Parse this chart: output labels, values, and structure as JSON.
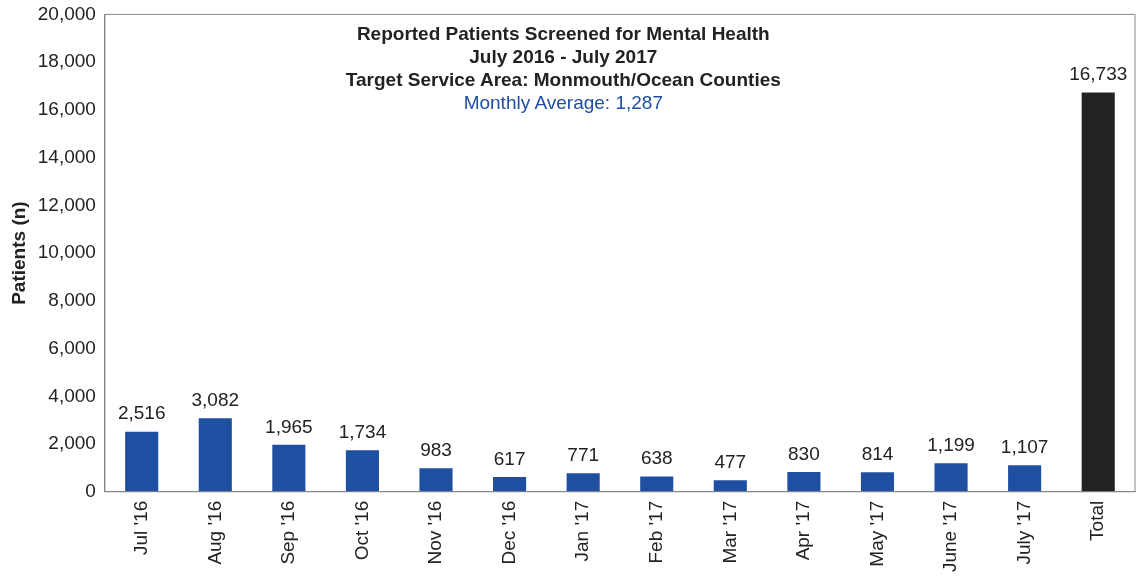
{
  "chart_data": {
    "type": "bar",
    "title": "Reported Patients Screened for Mental Health",
    "subtitle": "July 2016 - July 2017",
    "ylabel": "Patients (n)",
    "annotations": [
      "Target Service Area: Monmouth/Ocean Counties",
      "Monthly Average: 1,287"
    ],
    "categories": [
      "Jul '16",
      "Aug '16",
      "Sep '16",
      "Oct '16",
      "Nov '16",
      "Dec '16",
      "Jan '17",
      "Feb '17",
      "Mar '17",
      "Apr '17",
      "May '17",
      "June '17",
      "July '17",
      "Total"
    ],
    "values": [
      2516,
      3082,
      1965,
      1734,
      983,
      617,
      771,
      638,
      477,
      830,
      814,
      1199,
      1107,
      16733
    ],
    "colors": [
      "#1f4fa0",
      "#1f4fa0",
      "#1f4fa0",
      "#1f4fa0",
      "#1f4fa0",
      "#1f4fa0",
      "#1f4fa0",
      "#1f4fa0",
      "#1f4fa0",
      "#1f4fa0",
      "#1f4fa0",
      "#1f4fa0",
      "#1f4fa0",
      "#222222"
    ],
    "value_labels": [
      "2,516",
      "3,082",
      "1,965",
      "1,734",
      "983",
      "617",
      "771",
      "638",
      "477",
      "830",
      "814",
      "1,199",
      "1,107",
      "16,733"
    ],
    "ylim": [
      0,
      20000
    ],
    "yticks": [
      0,
      {
        "value": 2000,
        "label": "2,000"
      },
      {
        "value": 4000,
        "label": "4,000"
      },
      {
        "value": 6000,
        "label": "6,000"
      },
      {
        "value": 8000,
        "label": "8,000"
      },
      {
        "value": 10000,
        "label": "10,000"
      },
      {
        "value": 12000,
        "label": "12,000"
      },
      {
        "value": 14000,
        "label": "14,000"
      },
      {
        "value": 16000,
        "label": "16,000"
      },
      {
        "value": 18000,
        "label": "18,000"
      },
      {
        "value": 20000,
        "label": "20,000"
      }
    ],
    "grid": false,
    "legend": false
  }
}
